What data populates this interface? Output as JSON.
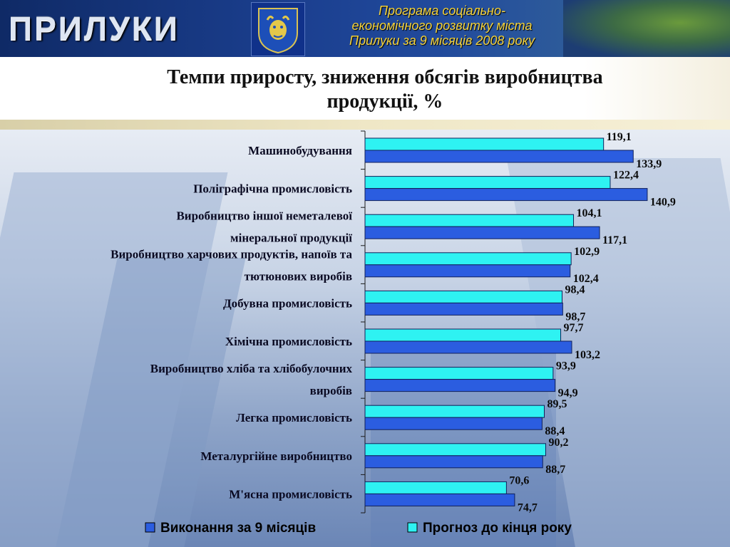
{
  "header": {
    "brand": "ПРИЛУКИ",
    "subtitle_lines": [
      "Програма соціально-",
      "економічного розвитку міста",
      "Прилуки за 9 місяців 2008 року"
    ]
  },
  "title_lines": [
    "Темпи приросту, зниження обсягів виробництва",
    "продукції,  %"
  ],
  "colors": {
    "series_actual": "#2b5de0",
    "series_forecast": "#2ef2f2",
    "bar_stroke": "#10205a"
  },
  "chart_data": {
    "type": "bar",
    "orientation": "horizontal",
    "title": "Темпи приросту, зниження обсягів виробництва продукції,  %",
    "xlim": [
      0,
      150
    ],
    "grid": false,
    "legend_position": "bottom",
    "categories": [
      [
        "Машинобудування"
      ],
      [
        "Поліграфічна промисловість"
      ],
      [
        "Виробництво іншої неметалевої",
        "мінеральної продукції"
      ],
      [
        "Виробництво харчових продуктів, напоїв та",
        "тютюнових виробів"
      ],
      [
        "Добувна промисловість"
      ],
      [
        "Хімічна промисловість"
      ],
      [
        "Виробництво хліба та хлібобулочних",
        "виробів"
      ],
      [
        "Легка промисловість"
      ],
      [
        "Металургійне виробництво"
      ],
      [
        "М'ясна промисловість"
      ]
    ],
    "series": [
      {
        "name": "Прогноз до кінця року",
        "values": [
          119.1,
          122.4,
          104.1,
          102.9,
          98.4,
          97.7,
          93.9,
          89.5,
          90.2,
          70.6
        ],
        "labels": [
          "119,1",
          "122,4",
          "104,1",
          "102,9",
          "98,4",
          "97,7",
          "93,9",
          "89,5",
          "90,2",
          "70,6"
        ]
      },
      {
        "name": "Виконання за 9 місяців",
        "values": [
          133.9,
          140.9,
          117.1,
          102.4,
          98.7,
          103.2,
          94.9,
          88.4,
          88.7,
          74.7
        ],
        "labels": [
          "133,9",
          "140,9",
          "117,1",
          "102,4",
          "98,7",
          "103,2",
          "94,9",
          "88,4",
          "88,7",
          "74,7"
        ]
      }
    ],
    "legend": [
      "Виконання за 9 місяців",
      "Прогноз до кінця року"
    ]
  }
}
